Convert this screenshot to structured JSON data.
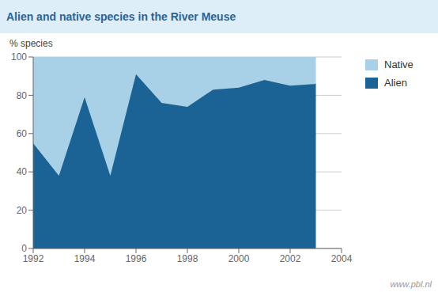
{
  "chart_data": {
    "type": "area",
    "title": "Alien and native species in the River Meuse",
    "y_label": "% species",
    "annotations": [
      "www.pbl.nl"
    ],
    "x": [
      1992,
      1993,
      1994,
      1995,
      1996,
      1997,
      1998,
      1999,
      2000,
      2001,
      2002,
      2003
    ],
    "series": [
      {
        "name": "Alien",
        "color": "#1b6394",
        "values": [
          55,
          38,
          79,
          38,
          91,
          76,
          74,
          83,
          84,
          88,
          85,
          86
        ]
      },
      {
        "name": "Native",
        "color": "#a8d0e6",
        "values": [
          45,
          62,
          21,
          62,
          9,
          24,
          26,
          17,
          16,
          12,
          15,
          14
        ]
      }
    ],
    "stacked": true,
    "xlim": [
      1992,
      2004
    ],
    "ylim": [
      0,
      100
    ],
    "xticks": [
      1992,
      1994,
      1996,
      1998,
      2000,
      2002,
      2004
    ],
    "yticks": [
      0,
      20,
      40,
      60,
      80,
      100
    ],
    "grid": true,
    "legend": "right"
  }
}
